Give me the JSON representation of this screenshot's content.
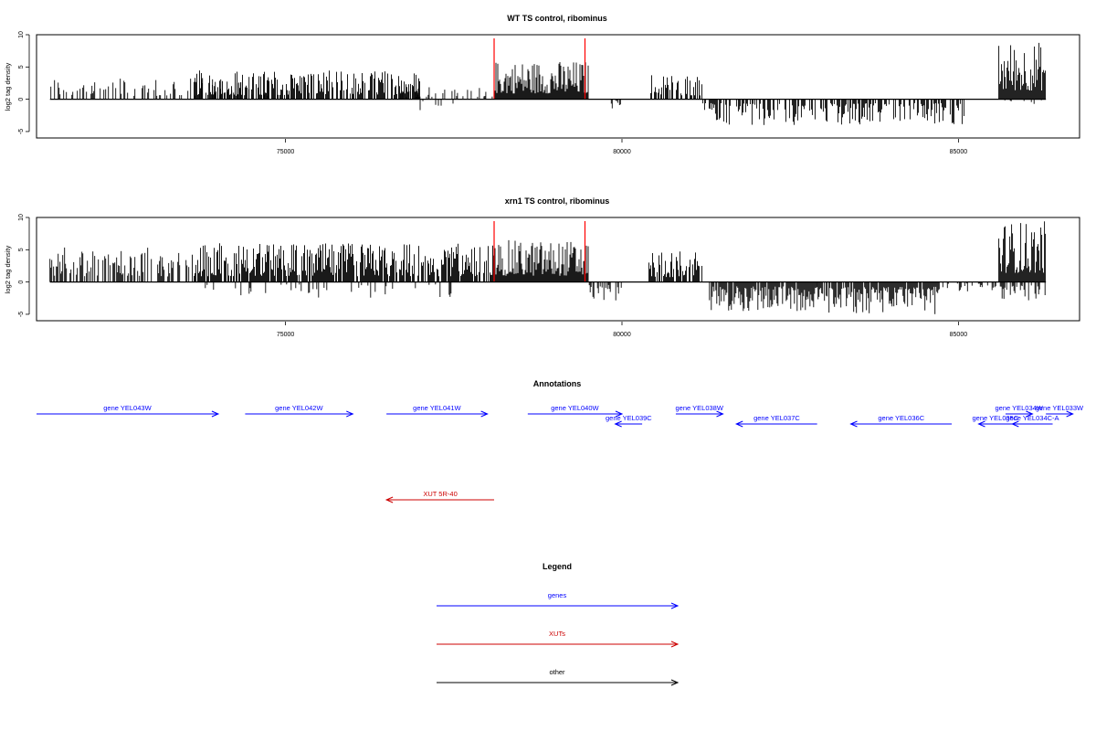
{
  "chart_data": [
    {
      "type": "bar",
      "title": "WT TS control, ribominus",
      "ylabel": "log2 tag density",
      "xlim": [
        71300,
        86800
      ],
      "ylim": [
        -6,
        10
      ],
      "yticks": [
        -5,
        0,
        5,
        10
      ],
      "xticks": [
        75000,
        80000,
        85000
      ],
      "grid": false,
      "highlight_lines_x": [
        78100,
        79450
      ],
      "signal_segments": [
        {
          "x0": 71500,
          "x1": 74800,
          "strand": 1,
          "max": 3.5,
          "density": 0.35
        },
        {
          "x0": 73600,
          "x1": 77000,
          "strand": 1,
          "max": 4.5,
          "density": 0.7
        },
        {
          "x0": 76700,
          "x1": 78100,
          "strand": 1,
          "max": 2.5,
          "density": 0.25
        },
        {
          "x0": 77000,
          "x1": 77500,
          "strand": -1,
          "max": 2,
          "density": 0.2
        },
        {
          "x0": 78100,
          "x1": 79500,
          "strand": 1,
          "max": 6,
          "density": 1.0
        },
        {
          "x0": 79800,
          "x1": 80000,
          "strand": -1,
          "max": 1.5,
          "density": 0.3
        },
        {
          "x0": 80400,
          "x1": 81200,
          "strand": 1,
          "max": 4,
          "density": 0.6
        },
        {
          "x0": 81200,
          "x1": 85100,
          "strand": -1,
          "max": 4,
          "density": 0.6
        },
        {
          "x0": 85600,
          "x1": 86300,
          "strand": 1,
          "max": 9,
          "density": 1.0
        },
        {
          "x0": 85500,
          "x1": 86300,
          "strand": -1,
          "max": 1,
          "density": 0.2
        }
      ]
    },
    {
      "type": "bar",
      "title": "xrn1 TS control, ribominus",
      "ylabel": "log2 tag density",
      "xlim": [
        71300,
        86800
      ],
      "ylim": [
        -6,
        10
      ],
      "yticks": [
        -5,
        0,
        5,
        10
      ],
      "xticks": [
        75000,
        80000,
        85000
      ],
      "grid": false,
      "highlight_lines_x": [
        78100,
        79450
      ],
      "signal_segments": [
        {
          "x0": 71500,
          "x1": 73600,
          "strand": 1,
          "max": 5.5,
          "density": 0.5
        },
        {
          "x0": 73600,
          "x1": 78100,
          "strand": 1,
          "max": 6,
          "density": 0.85
        },
        {
          "x0": 73700,
          "x1": 77500,
          "strand": -1,
          "max": 2.5,
          "density": 0.15
        },
        {
          "x0": 78100,
          "x1": 79500,
          "strand": 1,
          "max": 6.5,
          "density": 1.0
        },
        {
          "x0": 79500,
          "x1": 80000,
          "strand": -1,
          "max": 3,
          "density": 0.5
        },
        {
          "x0": 80400,
          "x1": 81200,
          "strand": 1,
          "max": 5,
          "density": 0.8
        },
        {
          "x0": 81300,
          "x1": 82900,
          "strand": -1,
          "max": 4.5,
          "density": 0.9
        },
        {
          "x0": 82900,
          "x1": 84700,
          "strand": -1,
          "max": 5,
          "density": 0.9
        },
        {
          "x0": 84700,
          "x1": 85600,
          "strand": -1,
          "max": 1.5,
          "density": 0.3
        },
        {
          "x0": 85600,
          "x1": 86300,
          "strand": 1,
          "max": 9.5,
          "density": 1.0
        },
        {
          "x0": 85500,
          "x1": 86300,
          "strand": -1,
          "max": 3,
          "density": 0.4
        }
      ]
    }
  ],
  "annotations": {
    "title": "Annotations",
    "genes": [
      {
        "label": "gene YEL043W",
        "x0": 71300,
        "x1": 74000,
        "dir": 1,
        "row": 0
      },
      {
        "label": "gene YEL042W",
        "x0": 74400,
        "x1": 76000,
        "dir": 1,
        "row": 0
      },
      {
        "label": "gene YEL041W",
        "x0": 76500,
        "x1": 78000,
        "dir": 1,
        "row": 0
      },
      {
        "label": "gene YEL040W",
        "x0": 78600,
        "x1": 80000,
        "dir": 1,
        "row": 0
      },
      {
        "label": "gene YEL039C",
        "x0": 79900,
        "x1": 80300,
        "dir": -1,
        "row": 1
      },
      {
        "label": "gene YEL038W",
        "x0": 80800,
        "x1": 81500,
        "dir": 1,
        "row": 0
      },
      {
        "label": "gene YEL037C",
        "x0": 81700,
        "x1": 82900,
        "dir": -1,
        "row": 1
      },
      {
        "label": "gene YEL036C",
        "x0": 83400,
        "x1": 84900,
        "dir": -1,
        "row": 1
      },
      {
        "label": "gene YEL035C",
        "x0": 85300,
        "x1": 85800,
        "dir": -1,
        "row": 1
      },
      {
        "label": "gene YEL034W",
        "x0": 85700,
        "x1": 86100,
        "dir": 1,
        "row": 0
      },
      {
        "label": "gene YEL034C-A",
        "x0": 85800,
        "x1": 86400,
        "dir": -1,
        "row": 1
      },
      {
        "label": "gene YEL033W",
        "x0": 86300,
        "x1": 86700,
        "dir": 1,
        "row": 0
      }
    ],
    "xuts": [
      {
        "label": "XUT 5R-40",
        "x0": 76500,
        "x1": 78100,
        "dir": -1
      }
    ]
  },
  "legend": {
    "title": "Legend",
    "items": [
      {
        "label": "genes",
        "color": "#0000ff"
      },
      {
        "label": "XUTs",
        "color": "#cc0000"
      },
      {
        "label": "other",
        "color": "#000000"
      }
    ]
  },
  "colors": {
    "gene": "#0000ff",
    "xut": "#cc0000",
    "highlight": "#ff0000",
    "bars": "#000000"
  }
}
